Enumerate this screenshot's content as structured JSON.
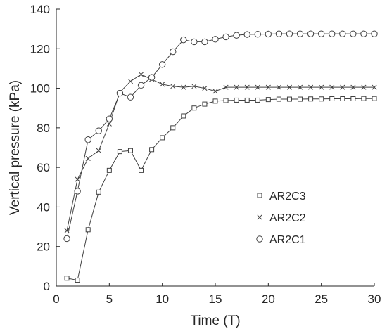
{
  "chart_data": {
    "type": "line",
    "xlabel": "Time (T)",
    "ylabel": "Vertical pressure (kPa)",
    "xlim": [
      0,
      30
    ],
    "ylim": [
      0,
      140
    ],
    "xticks": [
      0,
      5,
      10,
      15,
      20,
      25,
      30
    ],
    "yticks": [
      0,
      20,
      40,
      60,
      80,
      100,
      120,
      140
    ],
    "grid": false,
    "legend_position": "right-middle",
    "x": [
      1,
      2,
      3,
      4,
      5,
      6,
      7,
      8,
      9,
      10,
      11,
      12,
      13,
      14,
      15,
      16,
      17,
      18,
      19,
      20,
      21,
      22,
      23,
      24,
      25,
      26,
      27,
      28,
      29,
      30
    ],
    "series": [
      {
        "name": "AR2C3",
        "marker": "square",
        "color": "#404040",
        "values": [
          4,
          3,
          28.5,
          47.5,
          58.5,
          68,
          68.5,
          58.5,
          69,
          75,
          80,
          86,
          90,
          92,
          93.5,
          93.8,
          94,
          94,
          94,
          94.3,
          94.5,
          94.5,
          94.5,
          94.6,
          94.6,
          94.7,
          94.7,
          94.7,
          94.8,
          94.8
        ]
      },
      {
        "name": "AR2C2",
        "marker": "x",
        "color": "#404040",
        "values": [
          28,
          54,
          64.5,
          68.5,
          82,
          98,
          103.5,
          107,
          104.5,
          102,
          101,
          100.5,
          101,
          100,
          98.5,
          100.5,
          100.5,
          100.5,
          100.5,
          100.5,
          100.5,
          100.5,
          100.5,
          100.5,
          100.5,
          100.5,
          100.5,
          100.5,
          100.5,
          100.5
        ]
      },
      {
        "name": "AR2C1",
        "marker": "circle",
        "color": "#404040",
        "values": [
          24,
          48,
          74,
          78.5,
          84.5,
          97.5,
          95.5,
          101.5,
          105.5,
          112,
          118.5,
          124.5,
          123.5,
          123.5,
          124.8,
          126,
          126.8,
          127.2,
          127.3,
          127.4,
          127.5,
          127.5,
          127.5,
          127.5,
          127.5,
          127.5,
          127.5,
          127.5,
          127.5,
          127.5
        ]
      }
    ]
  }
}
